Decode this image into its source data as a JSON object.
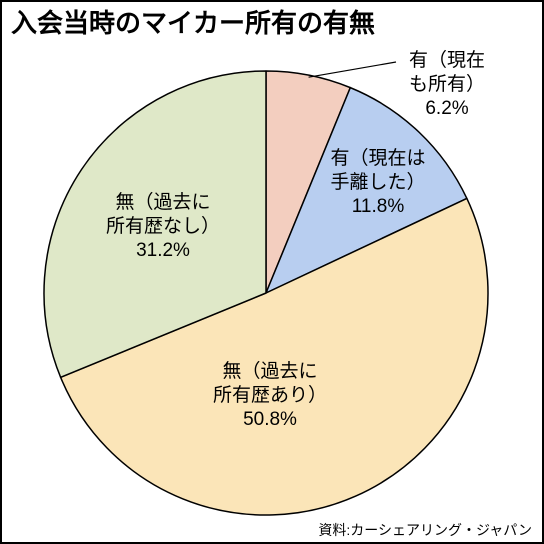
{
  "chart_data": {
    "type": "pie",
    "title": "入会当時のマイカー所有の有無",
    "source": "資料:カーシェアリング・ジャパン",
    "outline_color": "#000000",
    "slices": [
      {
        "label_lines": [
          "有（現在",
          "も所有）"
        ],
        "value": 6.2,
        "value_label": "6.2%",
        "color": "#f3cebf"
      },
      {
        "label_lines": [
          "有（現在は",
          "手離した）"
        ],
        "value": 11.8,
        "value_label": "11.8%",
        "color": "#b8cef0"
      },
      {
        "label_lines": [
          "無（過去に",
          "所有歴あり）"
        ],
        "value": 50.8,
        "value_label": "50.8%",
        "color": "#fbe5b8"
      },
      {
        "label_lines": [
          "無（過去に",
          "所有歴なし）"
        ],
        "value": 31.2,
        "value_label": "31.2%",
        "color": "#dfe8c8"
      }
    ]
  }
}
